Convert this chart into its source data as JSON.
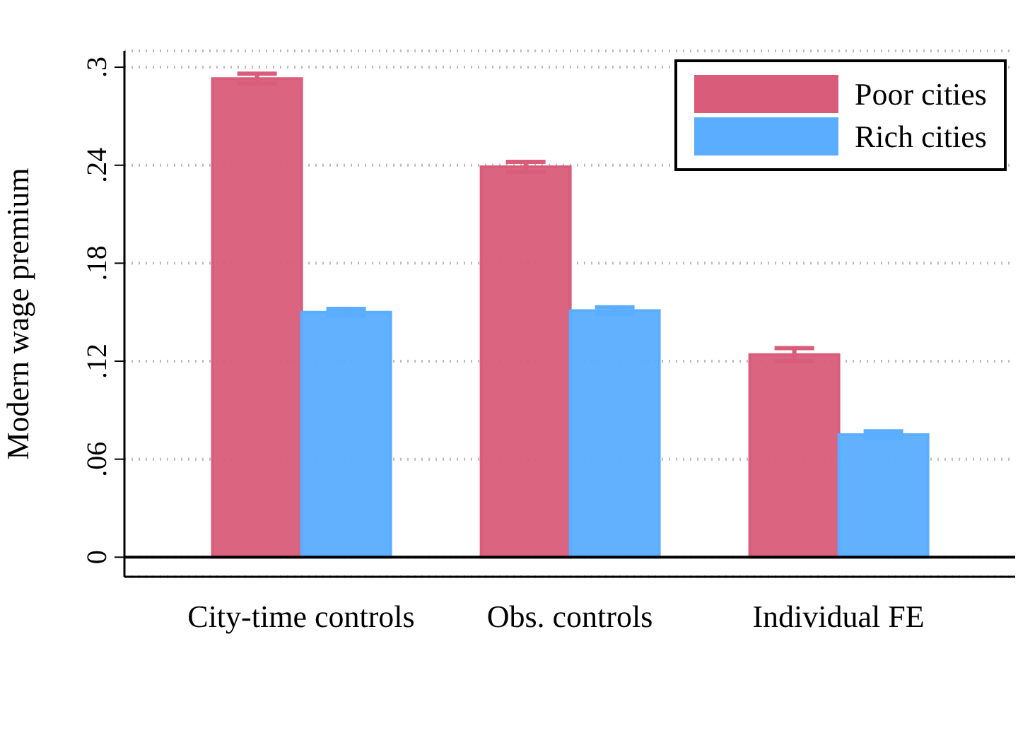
{
  "chart_data": {
    "type": "bar",
    "ylabel": "Modern wage premium",
    "categories": [
      "City-time controls",
      "Obs. controls",
      "Individual FE"
    ],
    "series": [
      {
        "name": "Poor cities",
        "color": "#d95d7a",
        "values": [
          0.293,
          0.239,
          0.124
        ],
        "errors": [
          0.003,
          0.003,
          0.004
        ]
      },
      {
        "name": "Rich cities",
        "color": "#5aadff",
        "values": [
          0.15,
          0.151,
          0.075
        ],
        "errors": [
          0.002,
          0.002,
          0.002
        ]
      }
    ],
    "ylim": [
      -0.012,
      0.31
    ],
    "yticks": [
      {
        "value": 0,
        "label": "0"
      },
      {
        "value": 0.06,
        "label": ".06"
      },
      {
        "value": 0.12,
        "label": ".12"
      },
      {
        "value": 0.18,
        "label": ".18"
      },
      {
        "value": 0.24,
        "label": ".24"
      },
      {
        "value": 0.3,
        "label": ".3"
      }
    ],
    "ref_lines": [
      {
        "axis": "y",
        "value": 0,
        "color": "#000000"
      }
    ],
    "grid": "y",
    "legend": "top right"
  }
}
